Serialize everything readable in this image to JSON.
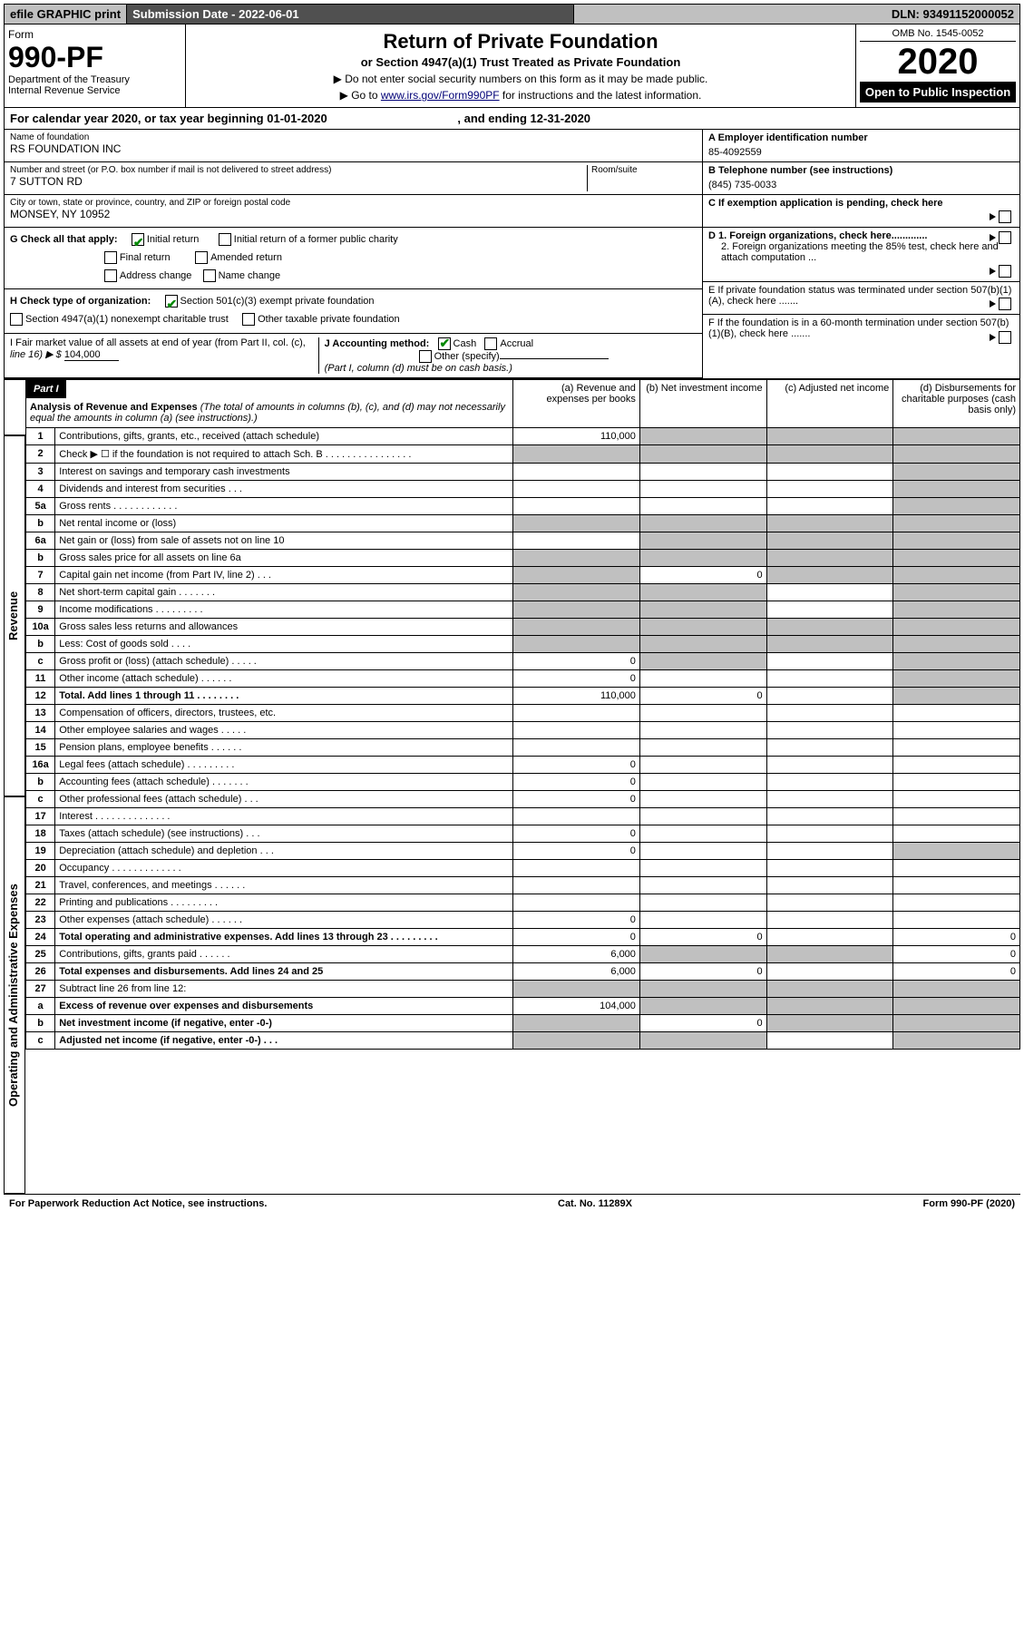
{
  "header": {
    "efile": "efile GRAPHIC print",
    "submission": "Submission Date - 2022-06-01",
    "dln": "DLN: 93491152000052"
  },
  "form": {
    "label": "Form",
    "number": "990-PF",
    "dept1": "Department of the Treasury",
    "dept2": "Internal Revenue Service"
  },
  "title": {
    "main": "Return of Private Foundation",
    "sub": "or Section 4947(a)(1) Trust Treated as Private Foundation",
    "note1": "▶ Do not enter social security numbers on this form as it may be made public.",
    "note2_pre": "▶ Go to ",
    "note2_link": "www.irs.gov/Form990PF",
    "note2_post": " for instructions and the latest information."
  },
  "yearbox": {
    "omb": "OMB No. 1545-0052",
    "year": "2020",
    "open": "Open to Public Inspection"
  },
  "calyear": {
    "text_pre": "For calendar year 2020, or tax year beginning ",
    "begin": "01-01-2020",
    "mid": " , and ending ",
    "end": "12-31-2020"
  },
  "info_left": {
    "name_label": "Name of foundation",
    "name": "RS FOUNDATION INC",
    "addr_label": "Number and street (or P.O. box number if mail is not delivered to street address)",
    "addr": "7 SUTTON RD",
    "room_label": "Room/suite",
    "room": "",
    "city_label": "City or town, state or province, country, and ZIP or foreign postal code",
    "city": "MONSEY, NY  10952"
  },
  "info_right": {
    "A_label": "A Employer identification number",
    "A_value": "85-4092559",
    "B_label": "B Telephone number (see instructions)",
    "B_value": "(845) 735-0033",
    "C_label": "C If exemption application is pending, check here",
    "D1": "D 1. Foreign organizations, check here.............",
    "D2": "2. Foreign organizations meeting the 85% test, check here and attach computation ...",
    "E": "E  If private foundation status was terminated under section 507(b)(1)(A), check here .......",
    "F": "F  If the foundation is in a 60-month termination under section 507(b)(1)(B), check here ......."
  },
  "G": {
    "label": "G Check all that apply:",
    "initial": "Initial return",
    "initial_former": "Initial return of a former public charity",
    "final": "Final return",
    "amended": "Amended return",
    "address": "Address change",
    "name": "Name change"
  },
  "H": {
    "label": "H Check type of organization:",
    "s501": "Section 501(c)(3) exempt private foundation",
    "s4947": "Section 4947(a)(1) nonexempt charitable trust",
    "other_tax": "Other taxable private foundation"
  },
  "I": {
    "label1": "I Fair market value of all assets at end of year (from Part II, col. (c),",
    "label2": "line 16) ▶ $",
    "value": "104,000"
  },
  "J": {
    "label": "J Accounting method:",
    "cash": "Cash",
    "accrual": "Accrual",
    "other": "Other (specify)",
    "note": "(Part I, column (d) must be on cash basis.)"
  },
  "part1": {
    "label": "Part I",
    "title": "Analysis of Revenue and Expenses",
    "title_note": "(The total of amounts in columns (b), (c), and (d) may not necessarily equal the amounts in column (a) (see instructions).)",
    "cols": {
      "a": "(a)  Revenue and expenses per books",
      "b": "(b)  Net investment income",
      "c": "(c)  Adjusted net income",
      "d": "(d)  Disbursements for charitable purposes (cash basis only)"
    }
  },
  "sidelabel": {
    "rev": "Revenue",
    "exp": "Operating and Administrative Expenses"
  },
  "lines": [
    {
      "no": "1",
      "desc": "Contributions, gifts, grants, etc., received (attach schedule)",
      "a": "110,000",
      "b": "s",
      "c": "s",
      "d": "s"
    },
    {
      "no": "2",
      "desc": "Check ▶ ☐ if the foundation is not required to attach Sch. B   .  .  .  .  .  .  .  .  .  .  .  .  .  .  .  .",
      "a": "s",
      "b": "s",
      "c": "s",
      "d": "s"
    },
    {
      "no": "3",
      "desc": "Interest on savings and temporary cash investments",
      "a": "",
      "b": "",
      "c": "",
      "d": "s"
    },
    {
      "no": "4",
      "desc": "Dividends and interest from securities   .  .  .",
      "a": "",
      "b": "",
      "c": "",
      "d": "s"
    },
    {
      "no": "5a",
      "desc": "Gross rents   .  .  .  .  .  .  .  .  .  .  .  .",
      "a": "",
      "b": "",
      "c": "",
      "d": "s"
    },
    {
      "no": "b",
      "desc": "Net rental income or (loss)",
      "a": "s",
      "b": "s",
      "c": "s",
      "d": "s"
    },
    {
      "no": "6a",
      "desc": "Net gain or (loss) from sale of assets not on line 10",
      "a": "",
      "b": "s",
      "c": "s",
      "d": "s"
    },
    {
      "no": "b",
      "desc": "Gross sales price for all assets on line 6a",
      "a": "s",
      "b": "s",
      "c": "s",
      "d": "s"
    },
    {
      "no": "7",
      "desc": "Capital gain net income (from Part IV, line 2)   .  .  .",
      "a": "s",
      "b": "0",
      "c": "s",
      "d": "s"
    },
    {
      "no": "8",
      "desc": "Net short-term capital gain   .  .  .  .  .  .  .",
      "a": "s",
      "b": "s",
      "c": "",
      "d": "s"
    },
    {
      "no": "9",
      "desc": "Income modifications  .  .  .  .  .  .  .  .  .",
      "a": "s",
      "b": "s",
      "c": "",
      "d": "s"
    },
    {
      "no": "10a",
      "desc": "Gross sales less returns and allowances",
      "a": "s",
      "b": "s",
      "c": "s",
      "d": "s"
    },
    {
      "no": "b",
      "desc": "Less: Cost of goods sold   .  .  .  .",
      "a": "s",
      "b": "s",
      "c": "s",
      "d": "s"
    },
    {
      "no": "c",
      "desc": "Gross profit or (loss) (attach schedule)   .  .  .  .  .",
      "a": "0",
      "b": "s",
      "c": "",
      "d": "s"
    },
    {
      "no": "11",
      "desc": "Other income (attach schedule)   .  .  .  .  .  .",
      "a": "0",
      "b": "",
      "c": "",
      "d": "s"
    },
    {
      "no": "12",
      "desc": "Total. Add lines 1 through 11   .  .  .  .  .  .  .  .",
      "bold": true,
      "a": "110,000",
      "b": "0",
      "c": "",
      "d": "s"
    },
    {
      "no": "13",
      "desc": "Compensation of officers, directors, trustees, etc.",
      "a": "",
      "b": "",
      "c": "",
      "d": ""
    },
    {
      "no": "14",
      "desc": "Other employee salaries and wages   .  .  .  .  .",
      "a": "",
      "b": "",
      "c": "",
      "d": ""
    },
    {
      "no": "15",
      "desc": "Pension plans, employee benefits  .  .  .  .  .  .",
      "a": "",
      "b": "",
      "c": "",
      "d": ""
    },
    {
      "no": "16a",
      "desc": "Legal fees (attach schedule)  .  .  .  .  .  .  .  .  .",
      "a": "0",
      "b": "",
      "c": "",
      "d": ""
    },
    {
      "no": "b",
      "desc": "Accounting fees (attach schedule)  .  .  .  .  .  .  .",
      "a": "0",
      "b": "",
      "c": "",
      "d": ""
    },
    {
      "no": "c",
      "desc": "Other professional fees (attach schedule)   .  .  .",
      "a": "0",
      "b": "",
      "c": "",
      "d": ""
    },
    {
      "no": "17",
      "desc": "Interest  .  .  .  .  .  .  .  .  .  .  .  .  .  .",
      "a": "",
      "b": "",
      "c": "",
      "d": ""
    },
    {
      "no": "18",
      "desc": "Taxes (attach schedule) (see instructions)   .  .  .",
      "a": "0",
      "b": "",
      "c": "",
      "d": ""
    },
    {
      "no": "19",
      "desc": "Depreciation (attach schedule) and depletion   .  .  .",
      "a": "0",
      "b": "",
      "c": "",
      "d": "s"
    },
    {
      "no": "20",
      "desc": "Occupancy  .  .  .  .  .  .  .  .  .  .  .  .  .",
      "a": "",
      "b": "",
      "c": "",
      "d": ""
    },
    {
      "no": "21",
      "desc": "Travel, conferences, and meetings  .  .  .  .  .  .",
      "a": "",
      "b": "",
      "c": "",
      "d": ""
    },
    {
      "no": "22",
      "desc": "Printing and publications  .  .  .  .  .  .  .  .  .",
      "a": "",
      "b": "",
      "c": "",
      "d": ""
    },
    {
      "no": "23",
      "desc": "Other expenses (attach schedule)  .  .  .  .  .  .",
      "a": "0",
      "b": "",
      "c": "",
      "d": ""
    },
    {
      "no": "24",
      "desc": "Total operating and administrative expenses. Add lines 13 through 23   .  .  .  .  .  .  .  .  .",
      "bold": true,
      "a": "0",
      "b": "0",
      "c": "",
      "d": "0"
    },
    {
      "no": "25",
      "desc": "Contributions, gifts, grants paid   .  .  .  .  .  .",
      "a": "6,000",
      "b": "s",
      "c": "s",
      "d": "0"
    },
    {
      "no": "26",
      "desc": "Total expenses and disbursements. Add lines 24 and 25",
      "bold": true,
      "a": "6,000",
      "b": "0",
      "c": "",
      "d": "0"
    },
    {
      "no": "27",
      "desc": "Subtract line 26 from line 12:",
      "a": "s",
      "b": "s",
      "c": "s",
      "d": "s"
    },
    {
      "no": "a",
      "desc": "Excess of revenue over expenses and disbursements",
      "bold": true,
      "a": "104,000",
      "b": "s",
      "c": "s",
      "d": "s"
    },
    {
      "no": "b",
      "desc": "Net investment income (if negative, enter -0-)",
      "bold": true,
      "a": "s",
      "b": "0",
      "c": "s",
      "d": "s"
    },
    {
      "no": "c",
      "desc": "Adjusted net income (if negative, enter -0-)   .  .  .",
      "bold": true,
      "a": "s",
      "b": "s",
      "c": "",
      "d": "s"
    }
  ],
  "footer": {
    "left": "For Paperwork Reduction Act Notice, see instructions.",
    "mid": "Cat. No. 11289X",
    "right": "Form 990-PF (2020)"
  }
}
